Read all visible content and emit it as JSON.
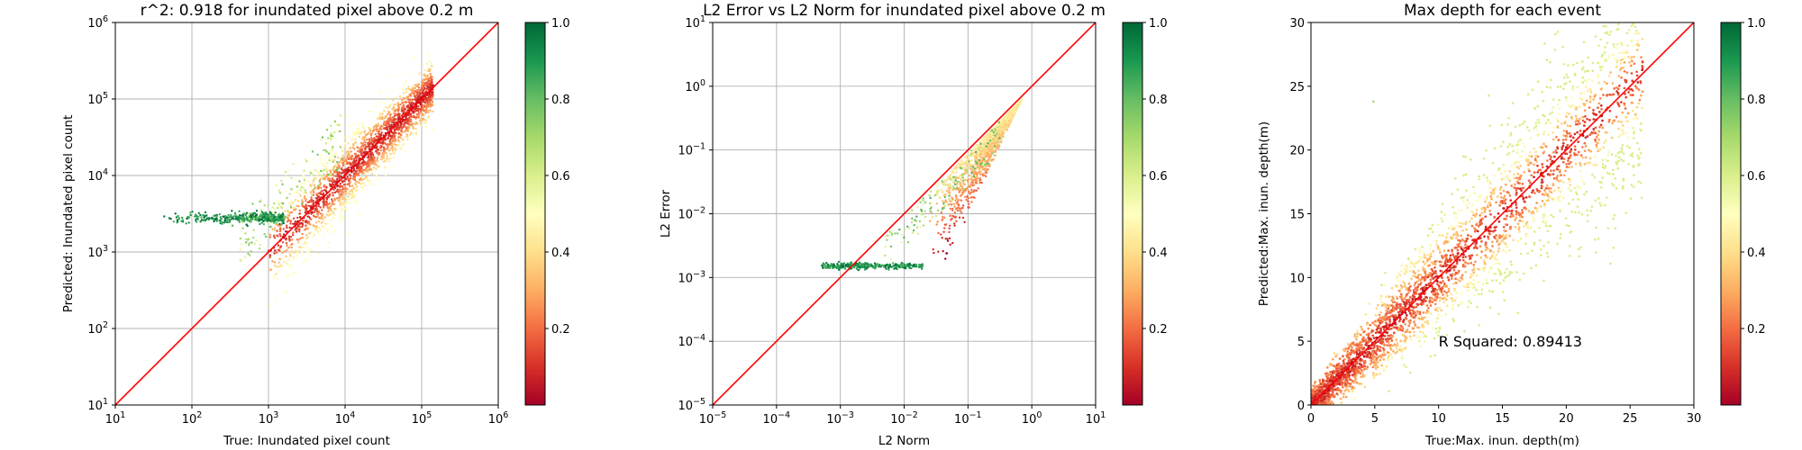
{
  "figure": {
    "background": "#ffffff",
    "colormap": "RdYlGn"
  },
  "chart_data": [
    {
      "type": "scatter",
      "title": "r^2: 0.918 for inundated pixel above 0.2 m",
      "xlabel": "True: Inundated pixel count",
      "ylabel": "Predicted: Inundated pixel count",
      "xscale": "log",
      "yscale": "log",
      "xlim": [
        10,
        1000000
      ],
      "ylim": [
        10,
        1000000
      ],
      "xticks": [
        {
          "base": "10",
          "exp": "1"
        },
        {
          "base": "10",
          "exp": "2"
        },
        {
          "base": "10",
          "exp": "3"
        },
        {
          "base": "10",
          "exp": "4"
        },
        {
          "base": "10",
          "exp": "5"
        },
        {
          "base": "10",
          "exp": "6"
        }
      ],
      "yticks": [
        {
          "base": "10",
          "exp": "1"
        },
        {
          "base": "10",
          "exp": "2"
        },
        {
          "base": "10",
          "exp": "3"
        },
        {
          "base": "10",
          "exp": "4"
        },
        {
          "base": "10",
          "exp": "5"
        },
        {
          "base": "10",
          "exp": "6"
        }
      ],
      "grid": true,
      "reference_line": {
        "type": "y=x",
        "color": "#ff0000"
      },
      "colorbar": {
        "range": [
          0.0,
          1.0
        ],
        "ticks": [
          "0.2",
          "0.4",
          "0.6",
          "0.8",
          "1.0"
        ]
      },
      "clusters": [
        {
          "description": "main band",
          "x_range": [
            1000,
            150000
          ],
          "y_center_ratio": 1.0,
          "value_range": [
            0.0,
            0.5
          ]
        },
        {
          "description": "flat tail",
          "x_range": [
            40,
            1500
          ],
          "y": 2800,
          "value_range": [
            0.8,
            1.0
          ]
        }
      ]
    },
    {
      "type": "scatter",
      "title": "L2 Error vs L2 Norm for inundated pixel above 0.2 m",
      "xlabel": "L2 Norm",
      "ylabel": "L2 Error",
      "xscale": "log",
      "yscale": "log",
      "xlim": [
        1e-05,
        10
      ],
      "ylim": [
        1e-05,
        10
      ],
      "xticks": [
        {
          "base": "10",
          "exp": "−5"
        },
        {
          "base": "10",
          "exp": "−4"
        },
        {
          "base": "10",
          "exp": "−3"
        },
        {
          "base": "10",
          "exp": "−2"
        },
        {
          "base": "10",
          "exp": "−1"
        },
        {
          "base": "10",
          "exp": "0"
        },
        {
          "base": "10",
          "exp": "1"
        }
      ],
      "yticks": [
        {
          "base": "10",
          "exp": "−5"
        },
        {
          "base": "10",
          "exp": "−4"
        },
        {
          "base": "10",
          "exp": "−3"
        },
        {
          "base": "10",
          "exp": "−2"
        },
        {
          "base": "10",
          "exp": "−1"
        },
        {
          "base": "10",
          "exp": "0"
        },
        {
          "base": "10",
          "exp": "1"
        }
      ],
      "grid": true,
      "reference_line": {
        "type": "y=x",
        "color": "#ff0000"
      },
      "colorbar": {
        "range": [
          0.0,
          1.0
        ],
        "ticks": [
          "0.2",
          "0.4",
          "0.6",
          "0.8",
          "1.0"
        ]
      },
      "clusters": [
        {
          "description": "flat tail",
          "x_range": [
            0.0005,
            0.02
          ],
          "y": 0.0015,
          "value_range": [
            0.8,
            1.0
          ]
        },
        {
          "description": "rising wedge",
          "x_range": [
            0.02,
            3.0
          ],
          "value_range": [
            0.0,
            0.5
          ]
        }
      ]
    },
    {
      "type": "scatter",
      "title": "Max depth for each event",
      "xlabel": "True:Max. inun. depth(m)",
      "ylabel": "Predicted:Max. inun. depth(m)",
      "xscale": "linear",
      "yscale": "linear",
      "xlim": [
        0,
        30
      ],
      "ylim": [
        0,
        30
      ],
      "xticks": [
        "0",
        "5",
        "10",
        "15",
        "20",
        "25",
        "30"
      ],
      "yticks": [
        "0",
        "5",
        "10",
        "15",
        "20",
        "25",
        "30"
      ],
      "grid": false,
      "reference_line": {
        "type": "y=x",
        "color": "#ff0000"
      },
      "annotation": {
        "text": "R Squared: 0.89413",
        "x": 10,
        "y": 5
      },
      "colorbar": {
        "range": [
          0.0,
          1.0
        ],
        "ticks": [
          "0.2",
          "0.4",
          "0.6",
          "0.8",
          "1.0"
        ]
      },
      "clusters": [
        {
          "description": "diagonal cloud",
          "x_range": [
            0,
            26
          ],
          "y_center_ratio": 1.0,
          "value_range": [
            0.0,
            0.6
          ]
        }
      ]
    }
  ]
}
